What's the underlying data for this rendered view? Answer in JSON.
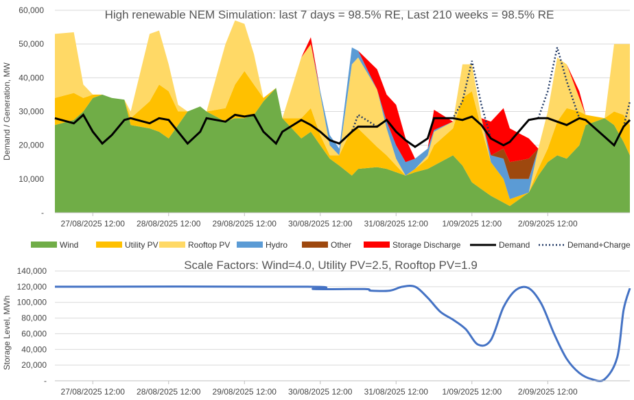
{
  "chart_data": [
    {
      "type": "area",
      "title": "High renewable NEM Simulation: last 7 days = 98.5% RE, Last 210 weeks = 98.5% RE",
      "ylabel": "Demand / Generation, MW",
      "xlabel": "",
      "ylim": [
        0,
        60000
      ],
      "yticks": [
        "-",
        "10,000",
        "20,000",
        "30,000",
        "40,000",
        "50,000",
        "60,000"
      ],
      "xticks": [
        "27/08/2025 12:00",
        "28/08/2025 12:00",
        "29/08/2025 12:00",
        "30/08/2025 12:00",
        "31/08/2025 12:00",
        "1/09/2025 12:00",
        "2/09/2025 12:00"
      ],
      "legend": [
        "Wind",
        "Utility PV",
        "Rooftop PV",
        "Hydro",
        "Other",
        "Storage Discharge",
        "Demand",
        "Demand+Charge"
      ],
      "colors": {
        "wind": "#70ad47",
        "utility_pv": "#ffc000",
        "rooftop_pv": "#ffd966",
        "hydro": "#5b9bd5",
        "other": "#9e480e",
        "storage": "#ff0000",
        "demand": "#000000",
        "demand_charge": "#203864"
      },
      "x_hours": [
        0,
        6,
        9,
        12,
        15,
        18,
        22,
        24,
        30,
        33,
        36,
        39,
        42,
        46,
        48,
        54,
        57,
        60,
        63,
        66,
        70,
        72,
        78,
        81,
        84,
        87,
        90,
        94,
        96,
        102,
        105,
        108,
        111,
        114,
        118,
        120,
        126,
        129,
        132,
        135,
        138,
        142,
        144,
        150,
        153,
        156,
        159,
        162,
        166,
        168,
        174,
        177,
        180,
        182
      ],
      "series": {
        "wind": [
          26000,
          27500,
          30000,
          34000,
          35000,
          34000,
          33500,
          26000,
          25000,
          24000,
          22000,
          26000,
          30000,
          31500,
          30000,
          27000,
          28000,
          28000,
          29000,
          33000,
          37000,
          28000,
          22000,
          24000,
          20000,
          16000,
          14000,
          11000,
          13000,
          13500,
          13000,
          12000,
          11000,
          12000,
          13000,
          14000,
          17000,
          14000,
          9000,
          7000,
          5000,
          3000,
          2000,
          6000,
          11000,
          15000,
          17000,
          16000,
          20000,
          26000,
          28000,
          26000,
          21000,
          17000
        ],
        "utility_pv": [
          8000,
          8000,
          4000,
          1000,
          0,
          0,
          0,
          2000,
          8000,
          14000,
          14000,
          4000,
          0,
          0,
          0,
          4000,
          10000,
          14000,
          9000,
          1000,
          0,
          0,
          6000,
          7000,
          3000,
          1000,
          3000,
          14000,
          12000,
          6000,
          4000,
          2000,
          0,
          1000,
          3000,
          6000,
          8000,
          20000,
          27000,
          18000,
          10000,
          7000,
          2000,
          0,
          2000,
          4000,
          10000,
          15000,
          10000,
          3000,
          0,
          4000,
          8000,
          9000
        ],
        "rooftop_pv": [
          19000,
          18000,
          4000,
          0,
          0,
          0,
          0,
          2000,
          20000,
          16000,
          8000,
          2000,
          0,
          0,
          0,
          19000,
          19000,
          14000,
          9000,
          0,
          0,
          0,
          18000,
          19000,
          12000,
          3000,
          0,
          19000,
          21000,
          17000,
          8000,
          2000,
          0,
          0,
          1000,
          4000,
          2000,
          10000,
          8000,
          3000,
          0,
          0,
          0,
          0,
          6000,
          11000,
          19000,
          13000,
          4000,
          0,
          0,
          20000,
          21000,
          24000
        ],
        "hydro": [
          0,
          0,
          0,
          0,
          0,
          0,
          0,
          0,
          0,
          0,
          0,
          0,
          0,
          0,
          0,
          0,
          0,
          0,
          0,
          0,
          0,
          0,
          0,
          0,
          1000,
          3000,
          2000,
          5000,
          2000,
          0,
          2000,
          4000,
          4000,
          3000,
          2000,
          500,
          0,
          0,
          0,
          0,
          2000,
          6000,
          6000,
          4000,
          0,
          0,
          0,
          0,
          0,
          0,
          0,
          0,
          0,
          0
        ],
        "other": [
          0,
          0,
          0,
          0,
          0,
          0,
          0,
          0,
          0,
          0,
          0,
          0,
          0,
          0,
          0,
          0,
          0,
          0,
          0,
          0,
          0,
          0,
          0,
          0,
          0,
          0,
          0,
          0,
          0,
          0,
          0,
          0,
          0,
          0,
          0,
          0,
          0,
          0,
          0,
          0,
          0,
          3000,
          5000,
          6000,
          0,
          0,
          0,
          0,
          0,
          0,
          0,
          0,
          0,
          0
        ],
        "storage": [
          0,
          0,
          0,
          0,
          0,
          0,
          0,
          0,
          0,
          0,
          0,
          0,
          0,
          0,
          0,
          0,
          0,
          0,
          0,
          0,
          0,
          0,
          0,
          2000,
          0,
          0,
          0,
          0,
          0,
          6000,
          8000,
          12000,
          7000,
          0,
          0,
          6000,
          0,
          0,
          0,
          0,
          10000,
          12000,
          10000,
          6000,
          0,
          0,
          0,
          0,
          2000,
          0,
          0,
          0,
          0,
          0
        ],
        "demand": [
          28000,
          26500,
          29000,
          24000,
          20500,
          23000,
          27500,
          28000,
          26500,
          28000,
          27500,
          24000,
          20500,
          24000,
          28000,
          27000,
          29000,
          28500,
          29000,
          24000,
          20500,
          24000,
          27500,
          26000,
          24000,
          21500,
          20500,
          24000,
          25500,
          25500,
          27500,
          24000,
          21500,
          19500,
          22000,
          28000,
          28000,
          27500,
          28500,
          26000,
          22000,
          20000,
          21000,
          27500,
          28000,
          28000,
          27000,
          26000,
          28000,
          27500,
          22500,
          20000,
          25500,
          27500
        ],
        "demand_charge": [
          28000,
          26500,
          29000,
          24000,
          20500,
          23000,
          27500,
          28000,
          26500,
          28000,
          27500,
          24000,
          20500,
          24000,
          28000,
          27000,
          29000,
          28500,
          29000,
          24000,
          20500,
          24000,
          27500,
          26000,
          24000,
          21500,
          20500,
          24000,
          29000,
          25500,
          27500,
          24000,
          21500,
          19500,
          22000,
          28000,
          28000,
          33000,
          45000,
          32000,
          22000,
          20000,
          21000,
          27500,
          28000,
          36000,
          49000,
          39000,
          28000,
          27500,
          22500,
          20000,
          25500,
          33000
        ]
      }
    },
    {
      "type": "line",
      "title": "Scale Factors: Wind=4.0, Utility PV=2.5, Rooftop PV=1.9",
      "ylabel": "Storage Level, MWh",
      "xlabel": "",
      "ylim": [
        0,
        140000
      ],
      "yticks": [
        "-",
        "20,000",
        "40,000",
        "60,000",
        "80,000",
        "100,000",
        "120,000",
        "140,000"
      ],
      "xticks": [
        "27/08/2025 12:00",
        "28/08/2025 12:00",
        "29/08/2025 12:00",
        "30/08/2025 12:00",
        "31/08/2025 12:00",
        "1/09/2025 12:00",
        "2/09/2025 12:00"
      ],
      "color": "#4472c4",
      "x_hours": [
        0,
        80,
        82,
        98,
        100,
        106,
        110,
        114,
        118,
        122,
        126,
        130,
        134,
        138,
        142,
        146,
        150,
        154,
        158,
        162,
        166,
        170,
        174,
        178,
        180,
        182
      ],
      "values": [
        120000,
        120000,
        117000,
        117000,
        115000,
        115000,
        120000,
        120000,
        106000,
        88000,
        78000,
        66000,
        46000,
        52000,
        94000,
        116000,
        118000,
        98000,
        60000,
        28000,
        10000,
        2000,
        2000,
        30000,
        90000,
        118000
      ]
    }
  ]
}
